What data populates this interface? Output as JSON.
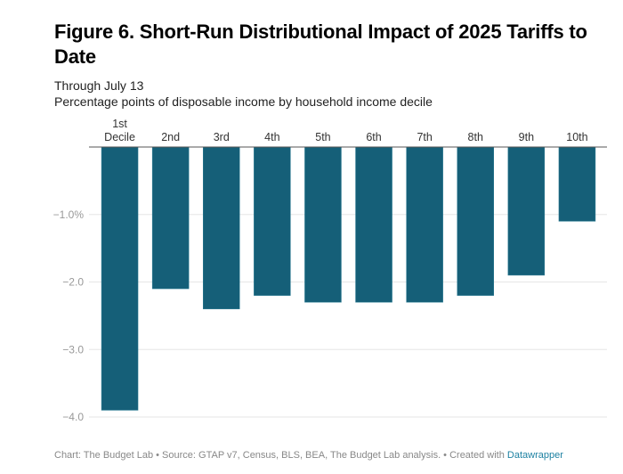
{
  "chart_data": {
    "type": "bar",
    "title": "Figure 6. Short-Run Distributional Impact of 2025 Tariffs to Date",
    "subtitle_lines": [
      "Through July 13",
      "Percentage points of disposable income by household income decile"
    ],
    "categories": [
      [
        "1st",
        "Decile"
      ],
      [
        "2nd"
      ],
      [
        "3rd"
      ],
      [
        "4th"
      ],
      [
        "5th"
      ],
      [
        "6th"
      ],
      [
        "7th"
      ],
      [
        "8th"
      ],
      [
        "9th"
      ],
      [
        "10th"
      ]
    ],
    "values": [
      -3.9,
      -2.1,
      -2.4,
      -2.2,
      -2.3,
      -2.3,
      -2.3,
      -2.2,
      -1.9,
      -1.1
    ],
    "xlabel": "",
    "ylabel": "",
    "ylim": [
      -4.0,
      0
    ],
    "yticks": [
      -1.0,
      -2.0,
      -3.0,
      -4.0
    ],
    "ytick_labels": [
      "−1.0%",
      "−2.0",
      "−3.0",
      "−4.0"
    ],
    "grid": true,
    "legend": "none",
    "bar_color": "#155f78",
    "category_axis_position": "top"
  },
  "footer": {
    "text": "Chart: The Budget Lab • Source: GTAP v7, Census, BLS, BEA, The Budget Lab analysis. • Created with ",
    "link": "Datawrapper",
    "link_color": "#1d81a2"
  }
}
